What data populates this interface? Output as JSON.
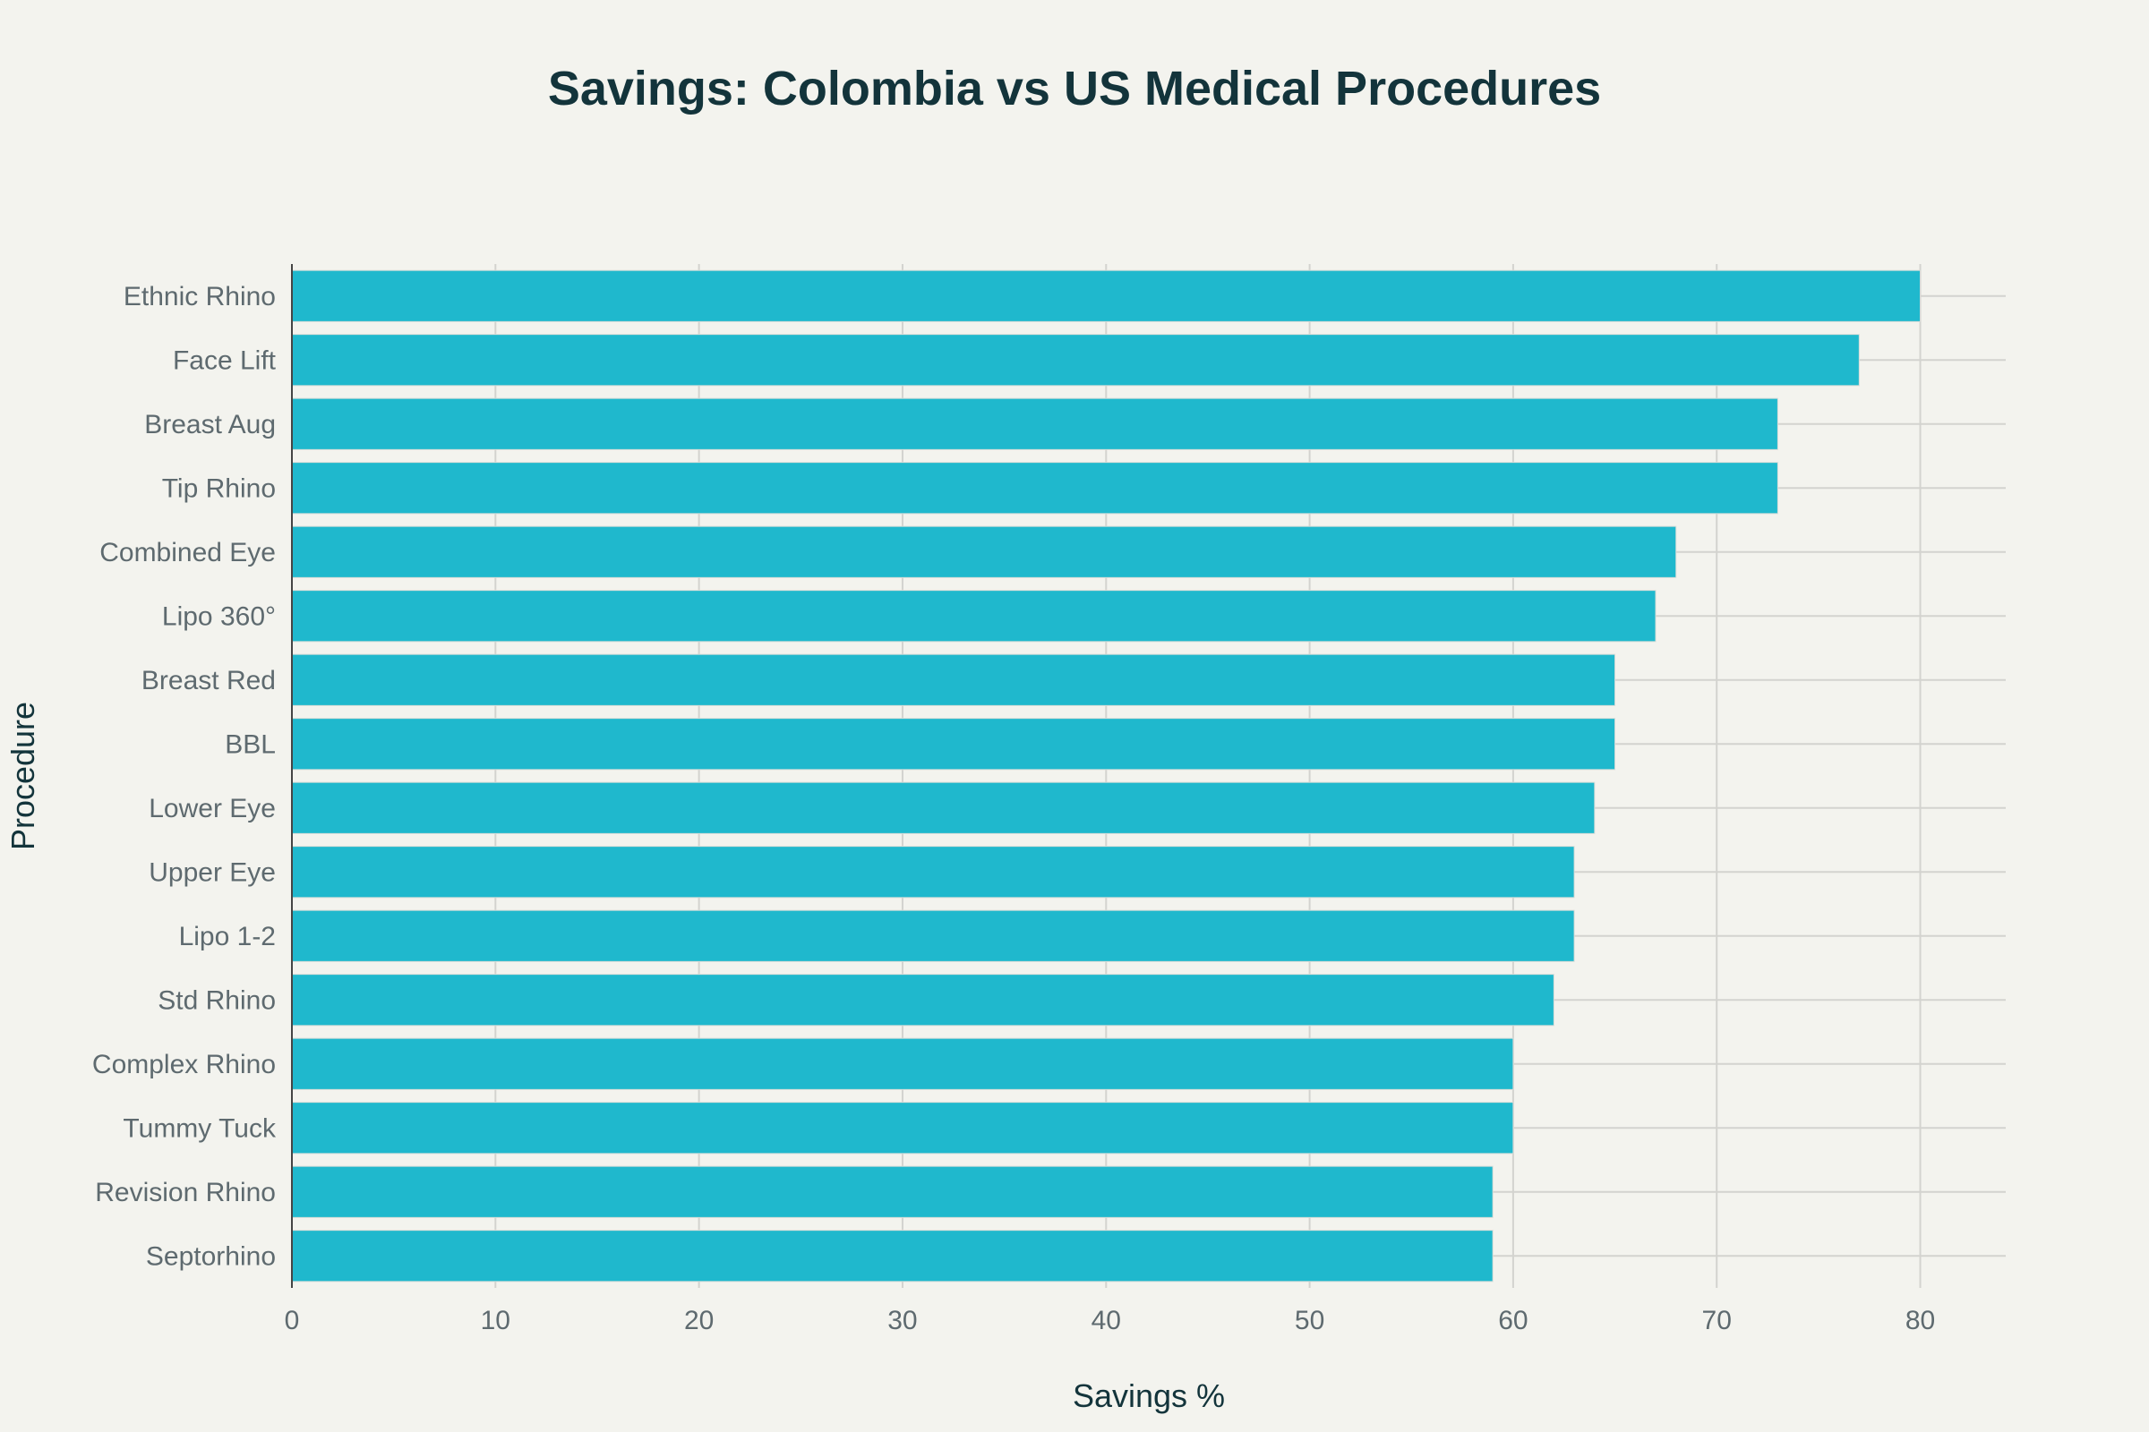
{
  "chart_data": {
    "type": "bar",
    "orientation": "horizontal",
    "title": "Savings: Colombia vs US Medical Procedures",
    "xlabel": "Savings %",
    "ylabel": "Procedure",
    "categories": [
      "Ethnic Rhino",
      "Face Lift",
      "Breast Aug",
      "Tip Rhino",
      "Combined Eye",
      "Lipo 360°",
      "Breast Red",
      "BBL",
      "Lower Eye",
      "Upper Eye",
      "Lipo 1-2",
      "Std Rhino",
      "Complex Rhino",
      "Tummy Tuck",
      "Revision Rhino",
      "Septorhino"
    ],
    "values": [
      80,
      77,
      73,
      73,
      68,
      67,
      65,
      65,
      64,
      63,
      63,
      62,
      60,
      60,
      59,
      59
    ],
    "xlim": [
      0,
      84.2
    ],
    "xticks": [
      0,
      10,
      20,
      30,
      40,
      50,
      60,
      70,
      80
    ],
    "grid": true,
    "bar_color": "#1fb8cd"
  }
}
